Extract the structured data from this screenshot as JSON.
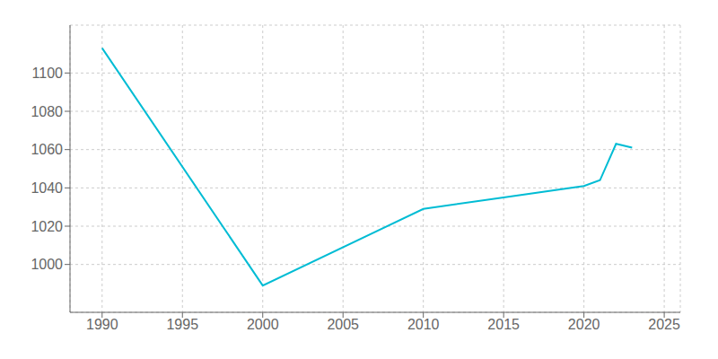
{
  "chart_data": {
    "type": "line",
    "x": [
      1990,
      2000,
      2010,
      2015,
      2020,
      2021,
      2022,
      2023
    ],
    "values": [
      1113,
      989,
      1029,
      1035,
      1041,
      1044,
      1063,
      1061
    ],
    "color": "#00bcd4",
    "xlim": [
      1988,
      2026
    ],
    "ylim": [
      975,
      1125
    ],
    "xticks": [
      1990,
      1995,
      2000,
      2005,
      2010,
      2015,
      2020,
      2025
    ],
    "yticks": [
      1000,
      1020,
      1040,
      1060,
      1080,
      1100
    ],
    "grid": true
  }
}
